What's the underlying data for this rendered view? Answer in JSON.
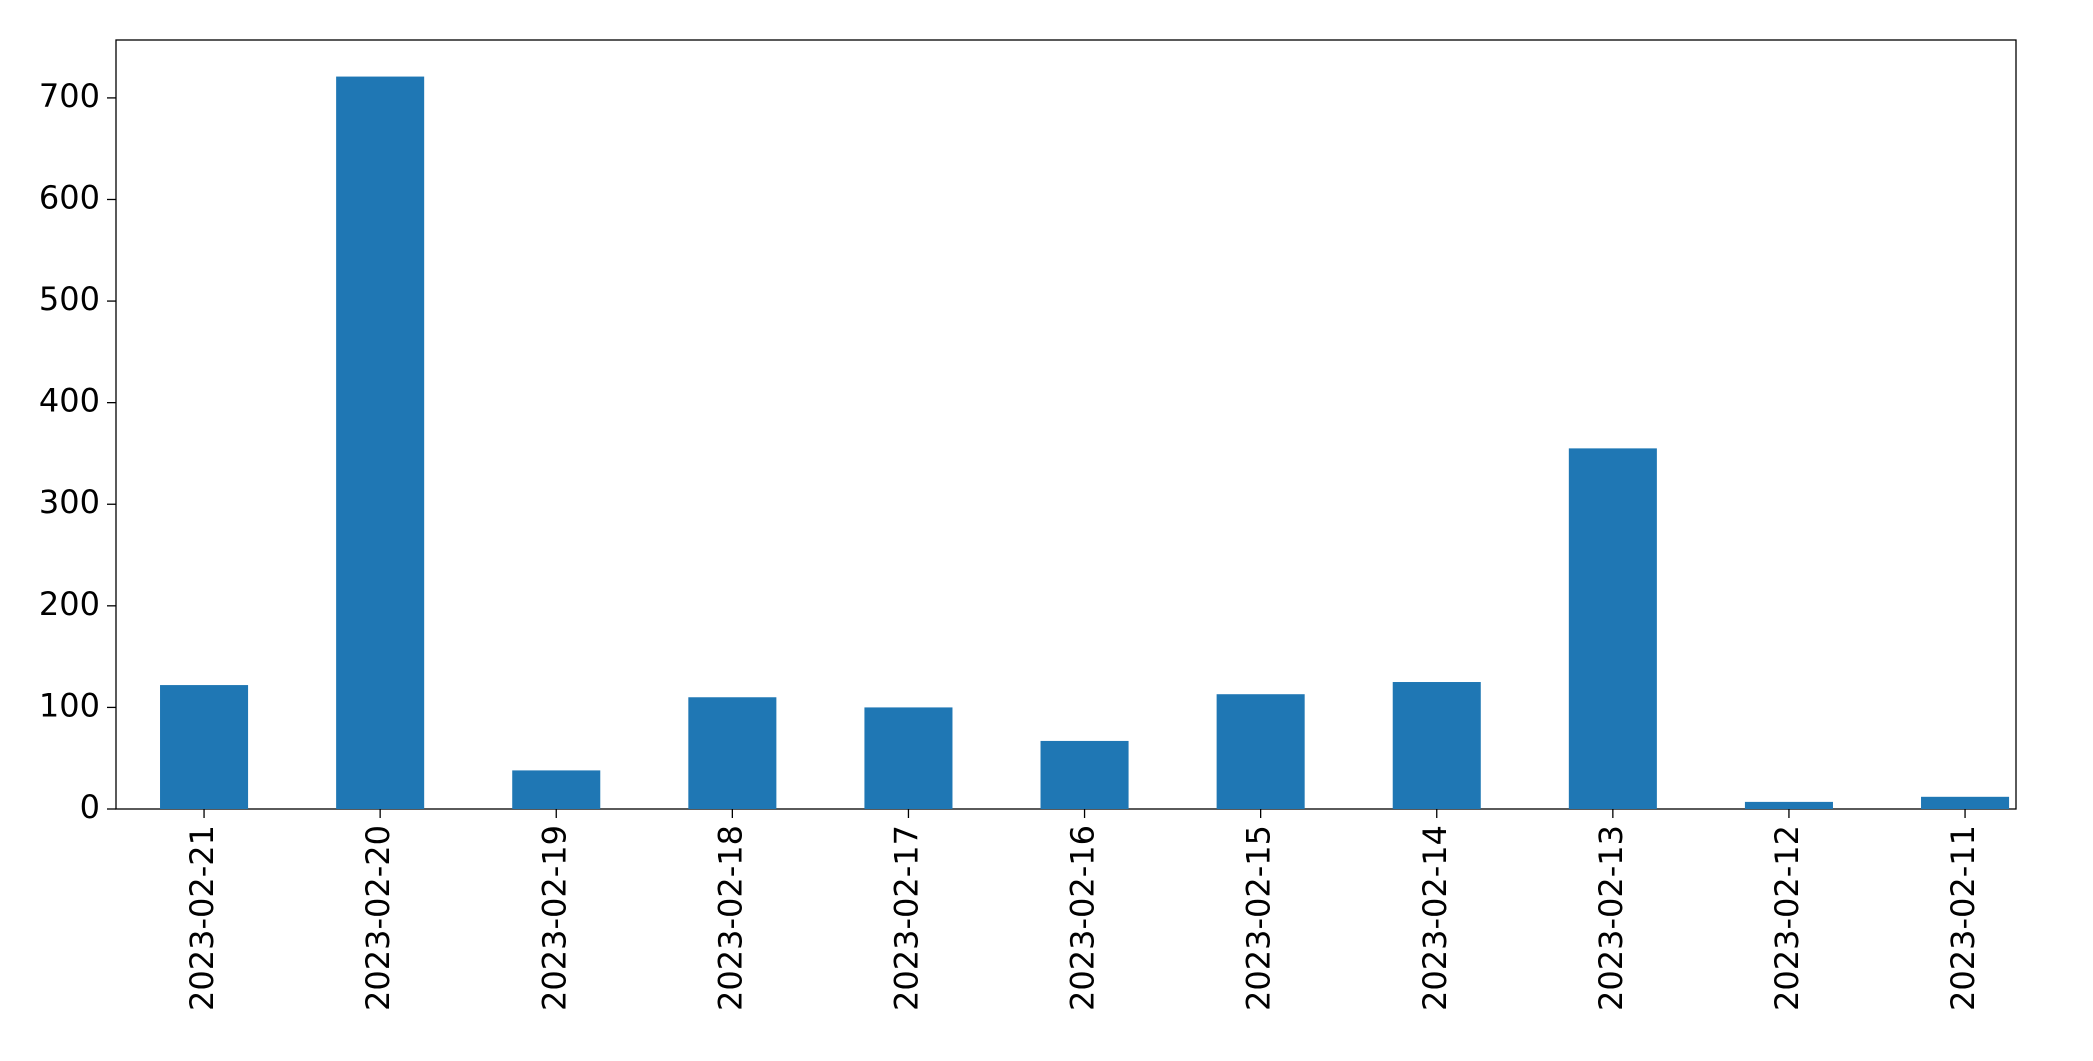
{
  "chart_data": {
    "type": "bar",
    "categories": [
      "2023-02-21",
      "2023-02-20",
      "2023-02-19",
      "2023-02-18",
      "2023-02-17",
      "2023-02-16",
      "2023-02-15",
      "2023-02-14",
      "2023-02-13",
      "2023-02-12",
      "2023-02-11"
    ],
    "values": [
      122,
      721,
      38,
      110,
      100,
      67,
      113,
      125,
      355,
      7,
      12
    ],
    "color": "#1f77b4",
    "ylim": [
      0,
      757
    ],
    "yticks": [
      0,
      100,
      200,
      300,
      400,
      500,
      600,
      700
    ],
    "grid": false
  }
}
